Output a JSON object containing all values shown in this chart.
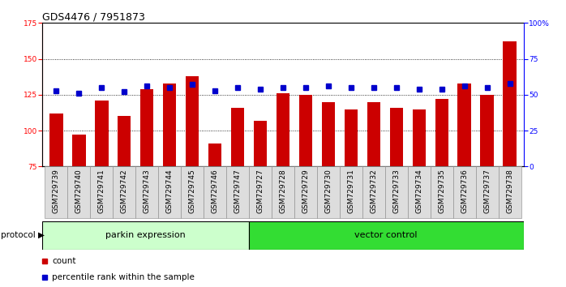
{
  "title": "GDS4476 / 7951873",
  "samples": [
    "GSM729739",
    "GSM729740",
    "GSM729741",
    "GSM729742",
    "GSM729743",
    "GSM729744",
    "GSM729745",
    "GSM729746",
    "GSM729747",
    "GSM729727",
    "GSM729728",
    "GSM729729",
    "GSM729730",
    "GSM729731",
    "GSM729732",
    "GSM729733",
    "GSM729734",
    "GSM729735",
    "GSM729736",
    "GSM729737",
    "GSM729738"
  ],
  "counts": [
    112,
    97,
    121,
    110,
    129,
    133,
    138,
    91,
    116,
    107,
    126,
    125,
    120,
    115,
    120,
    116,
    115,
    122,
    133,
    125,
    162
  ],
  "percentiles": [
    53,
    51,
    55,
    52,
    56,
    55,
    57,
    53,
    55,
    54,
    55,
    55,
    56,
    55,
    55,
    55,
    54,
    54,
    56,
    55,
    58
  ],
  "parkin_count": 9,
  "vector_count": 12,
  "parkin_label": "parkin expression",
  "vector_label": "vector control",
  "protocol_label": "protocol",
  "bar_color": "#CC0000",
  "marker_color": "#0000CC",
  "parkin_bg": "#CCFFCC",
  "vector_bg": "#33DD33",
  "ylim_left": [
    75,
    175
  ],
  "ylim_right": [
    0,
    100
  ],
  "yticks_left": [
    75,
    100,
    125,
    150,
    175
  ],
  "yticks_right": [
    0,
    25,
    50,
    75,
    100
  ],
  "grid_values": [
    100,
    125,
    150
  ],
  "legend_count_label": "count",
  "legend_pct_label": "percentile rank within the sample",
  "title_fontsize": 9,
  "tick_fontsize": 6.5,
  "label_fontsize": 8
}
